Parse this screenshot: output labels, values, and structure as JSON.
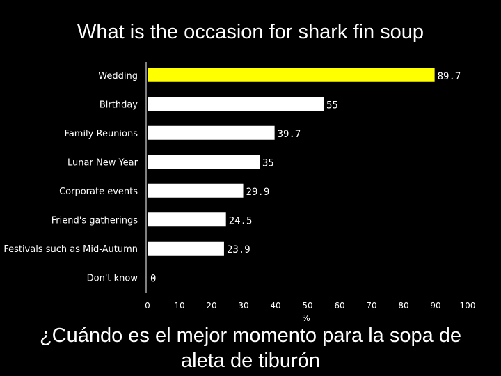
{
  "slide": {
    "title": "What is the occasion for shark fin soup",
    "subtitle": "¿Cuándo es el mejor momento para la sopa de aleta de tiburón"
  },
  "chart_data": {
    "type": "bar",
    "orientation": "horizontal",
    "categories": [
      "Wedding",
      "Birthday",
      "Family Reunions",
      "Lunar New Year",
      "Corporate events",
      "Friend's gatherings",
      "Festivals such as Mid-Autumn",
      "Don't know"
    ],
    "values": [
      89.7,
      55,
      39.7,
      35,
      29.9,
      24.5,
      23.9,
      0
    ],
    "value_labels": [
      "89.7",
      "55",
      "39.7",
      "35",
      "29.9",
      "24.5",
      "23.9",
      "0"
    ],
    "highlight_index": 0,
    "xlim": [
      0,
      100
    ],
    "xticks": [
      0,
      10,
      20,
      30,
      40,
      50,
      60,
      70,
      80,
      90,
      100
    ],
    "xlabel": "%",
    "grid": false,
    "colors": {
      "background": "#000000",
      "bar": "#ffffff",
      "highlight": "#ffff00",
      "text": "#ffffff"
    }
  }
}
